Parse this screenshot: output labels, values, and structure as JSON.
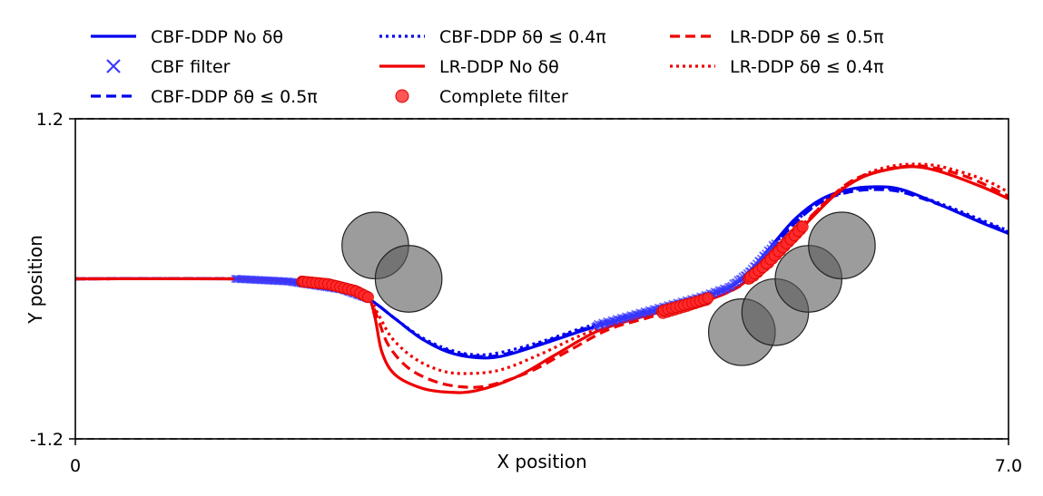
{
  "chart_data": {
    "type": "line",
    "xlabel": "X position",
    "ylabel": "Y position",
    "xlim": [
      0,
      7.0
    ],
    "ylim": [
      -1.2,
      1.2
    ],
    "xticks": [
      "0",
      "7.0"
    ],
    "yticks": [
      "1.2",
      "-1.2"
    ],
    "boundaries": [
      1.2,
      -1.2
    ],
    "legend_position": "top",
    "legend_entries": [
      {
        "name": "CBF-DDP No δθ",
        "color": "#0000ee",
        "style": "solid"
      },
      {
        "name": "CBF filter",
        "color": "#3a3aff",
        "style": "x-marker"
      },
      {
        "name": "CBF-DDP δθ ≤ 0.5π",
        "color": "#0000ee",
        "style": "dashed"
      },
      {
        "name": "CBF-DDP δθ ≤ 0.4π",
        "color": "#0000ee",
        "style": "dotted"
      },
      {
        "name": "LR-DDP No δθ",
        "color": "#ee0000",
        "style": "solid"
      },
      {
        "name": "Complete filter",
        "color": "#ff3333",
        "style": "circle-marker"
      },
      {
        "name": "LR-DDP δθ ≤ 0.5π",
        "color": "#ee0000",
        "style": "dashed"
      },
      {
        "name": "LR-DDP δθ ≤ 0.4π",
        "color": "#ee0000",
        "style": "dotted"
      }
    ],
    "obstacles": [
      {
        "x": 2.25,
        "y": 0.25,
        "r": 0.25
      },
      {
        "x": 2.5,
        "y": 0.0,
        "r": 0.25
      },
      {
        "x": 5.0,
        "y": -0.4,
        "r": 0.25
      },
      {
        "x": 5.25,
        "y": -0.25,
        "r": 0.25
      },
      {
        "x": 5.5,
        "y": 0.0,
        "r": 0.25
      },
      {
        "x": 5.75,
        "y": 0.25,
        "r": 0.25
      }
    ],
    "series": [
      {
        "name": "CBF-DDP No δθ",
        "color": "#0000ee",
        "dash": "",
        "points": [
          [
            0,
            0
          ],
          [
            1.2,
            0
          ],
          [
            1.6,
            -0.02
          ],
          [
            2.0,
            -0.08
          ],
          [
            2.2,
            -0.15
          ],
          [
            2.4,
            -0.3
          ],
          [
            2.6,
            -0.45
          ],
          [
            2.8,
            -0.55
          ],
          [
            3.0,
            -0.59
          ],
          [
            3.2,
            -0.58
          ],
          [
            3.5,
            -0.49
          ],
          [
            3.8,
            -0.39
          ],
          [
            4.1,
            -0.3
          ],
          [
            4.4,
            -0.22
          ],
          [
            4.7,
            -0.14
          ],
          [
            4.9,
            -0.07
          ],
          [
            5.05,
            0.05
          ],
          [
            5.2,
            0.22
          ],
          [
            5.4,
            0.45
          ],
          [
            5.6,
            0.6
          ],
          [
            5.8,
            0.67
          ],
          [
            6.0,
            0.69
          ],
          [
            6.2,
            0.67
          ],
          [
            6.5,
            0.55
          ],
          [
            6.8,
            0.42
          ],
          [
            7.0,
            0.34
          ]
        ]
      },
      {
        "name": "CBF-DDP δθ ≤ 0.5π",
        "color": "#0000ee",
        "dash": "11,6",
        "points": [
          [
            0,
            0
          ],
          [
            1.2,
            0
          ],
          [
            1.6,
            -0.02
          ],
          [
            2.0,
            -0.08
          ],
          [
            2.2,
            -0.15
          ],
          [
            2.4,
            -0.3
          ],
          [
            2.6,
            -0.45
          ],
          [
            2.8,
            -0.54
          ],
          [
            3.0,
            -0.58
          ],
          [
            3.2,
            -0.57
          ],
          [
            3.5,
            -0.48
          ],
          [
            3.8,
            -0.38
          ],
          [
            4.1,
            -0.3
          ],
          [
            4.4,
            -0.22
          ],
          [
            4.7,
            -0.14
          ],
          [
            4.9,
            -0.07
          ],
          [
            5.05,
            0.04
          ],
          [
            5.2,
            0.2
          ],
          [
            5.4,
            0.42
          ],
          [
            5.6,
            0.58
          ],
          [
            5.8,
            0.65
          ],
          [
            6.0,
            0.67
          ],
          [
            6.2,
            0.65
          ],
          [
            6.5,
            0.55
          ],
          [
            6.8,
            0.43
          ],
          [
            7.0,
            0.35
          ]
        ]
      },
      {
        "name": "CBF-DDP δθ ≤ 0.4π",
        "color": "#0000ee",
        "dash": "3,4",
        "points": [
          [
            0,
            0
          ],
          [
            1.2,
            0
          ],
          [
            1.6,
            -0.02
          ],
          [
            2.0,
            -0.08
          ],
          [
            2.2,
            -0.15
          ],
          [
            2.4,
            -0.3
          ],
          [
            2.6,
            -0.44
          ],
          [
            2.8,
            -0.53
          ],
          [
            3.0,
            -0.57
          ],
          [
            3.2,
            -0.55
          ],
          [
            3.5,
            -0.47
          ],
          [
            3.8,
            -0.37
          ],
          [
            4.1,
            -0.29
          ],
          [
            4.4,
            -0.21
          ],
          [
            4.7,
            -0.13
          ],
          [
            4.9,
            -0.06
          ],
          [
            5.05,
            0.05
          ],
          [
            5.2,
            0.21
          ],
          [
            5.4,
            0.43
          ],
          [
            5.6,
            0.58
          ],
          [
            5.8,
            0.66
          ],
          [
            6.0,
            0.68
          ],
          [
            6.2,
            0.66
          ],
          [
            6.5,
            0.56
          ],
          [
            6.8,
            0.44
          ],
          [
            7.0,
            0.36
          ]
        ]
      },
      {
        "name": "LR-DDP No δθ",
        "color": "#ee0000",
        "dash": "",
        "points": [
          [
            0,
            0
          ],
          [
            1.2,
            0
          ],
          [
            1.6,
            -0.01
          ],
          [
            1.9,
            -0.04
          ],
          [
            2.1,
            -0.09
          ],
          [
            2.2,
            -0.14
          ],
          [
            2.25,
            -0.3
          ],
          [
            2.3,
            -0.55
          ],
          [
            2.4,
            -0.72
          ],
          [
            2.6,
            -0.82
          ],
          [
            2.8,
            -0.85
          ],
          [
            3.0,
            -0.84
          ],
          [
            3.3,
            -0.74
          ],
          [
            3.6,
            -0.57
          ],
          [
            3.9,
            -0.4
          ],
          [
            4.2,
            -0.3
          ],
          [
            4.5,
            -0.22
          ],
          [
            4.8,
            -0.14
          ],
          [
            5.0,
            -0.04
          ],
          [
            5.2,
            0.12
          ],
          [
            5.45,
            0.38
          ],
          [
            5.7,
            0.63
          ],
          [
            5.9,
            0.76
          ],
          [
            6.1,
            0.82
          ],
          [
            6.3,
            0.84
          ],
          [
            6.5,
            0.8
          ],
          [
            6.8,
            0.69
          ],
          [
            7.0,
            0.6
          ]
        ]
      },
      {
        "name": "LR-DDP δθ ≤ 0.5π",
        "color": "#ee0000",
        "dash": "11,6",
        "points": [
          [
            0,
            0
          ],
          [
            1.2,
            0
          ],
          [
            1.6,
            -0.01
          ],
          [
            1.9,
            -0.04
          ],
          [
            2.1,
            -0.09
          ],
          [
            2.2,
            -0.14
          ],
          [
            2.27,
            -0.3
          ],
          [
            2.35,
            -0.5
          ],
          [
            2.5,
            -0.67
          ],
          [
            2.7,
            -0.77
          ],
          [
            2.9,
            -0.81
          ],
          [
            3.1,
            -0.8
          ],
          [
            3.4,
            -0.7
          ],
          [
            3.7,
            -0.54
          ],
          [
            4.0,
            -0.38
          ],
          [
            4.3,
            -0.29
          ],
          [
            4.6,
            -0.2
          ],
          [
            4.9,
            -0.1
          ],
          [
            5.1,
            0.03
          ],
          [
            5.3,
            0.24
          ],
          [
            5.55,
            0.5
          ],
          [
            5.8,
            0.72
          ],
          [
            6.0,
            0.8
          ],
          [
            6.2,
            0.84
          ],
          [
            6.4,
            0.84
          ],
          [
            6.7,
            0.76
          ],
          [
            7.0,
            0.62
          ]
        ]
      },
      {
        "name": "LR-DDP δθ ≤ 0.4π",
        "color": "#ee0000",
        "dash": "3,4",
        "points": [
          [
            0,
            0
          ],
          [
            1.2,
            0
          ],
          [
            1.6,
            -0.01
          ],
          [
            1.9,
            -0.04
          ],
          [
            2.1,
            -0.09
          ],
          [
            2.2,
            -0.14
          ],
          [
            2.28,
            -0.28
          ],
          [
            2.38,
            -0.45
          ],
          [
            2.55,
            -0.6
          ],
          [
            2.75,
            -0.69
          ],
          [
            2.95,
            -0.71
          ],
          [
            3.2,
            -0.68
          ],
          [
            3.5,
            -0.56
          ],
          [
            3.8,
            -0.42
          ],
          [
            4.1,
            -0.32
          ],
          [
            4.4,
            -0.24
          ],
          [
            4.7,
            -0.16
          ],
          [
            4.95,
            -0.07
          ],
          [
            5.15,
            0.08
          ],
          [
            5.4,
            0.33
          ],
          [
            5.65,
            0.6
          ],
          [
            5.9,
            0.77
          ],
          [
            6.1,
            0.84
          ],
          [
            6.3,
            0.86
          ],
          [
            6.5,
            0.84
          ],
          [
            6.8,
            0.75
          ],
          [
            7.0,
            0.65
          ]
        ]
      }
    ],
    "cbf_filter_ranges": [
      [
        1.2,
        2.2
      ],
      [
        3.9,
        5.25
      ]
    ],
    "complete_filter_ranges": [
      [
        1.7,
        2.2
      ],
      [
        4.4,
        4.75
      ],
      [
        5.05,
        5.45
      ]
    ]
  }
}
